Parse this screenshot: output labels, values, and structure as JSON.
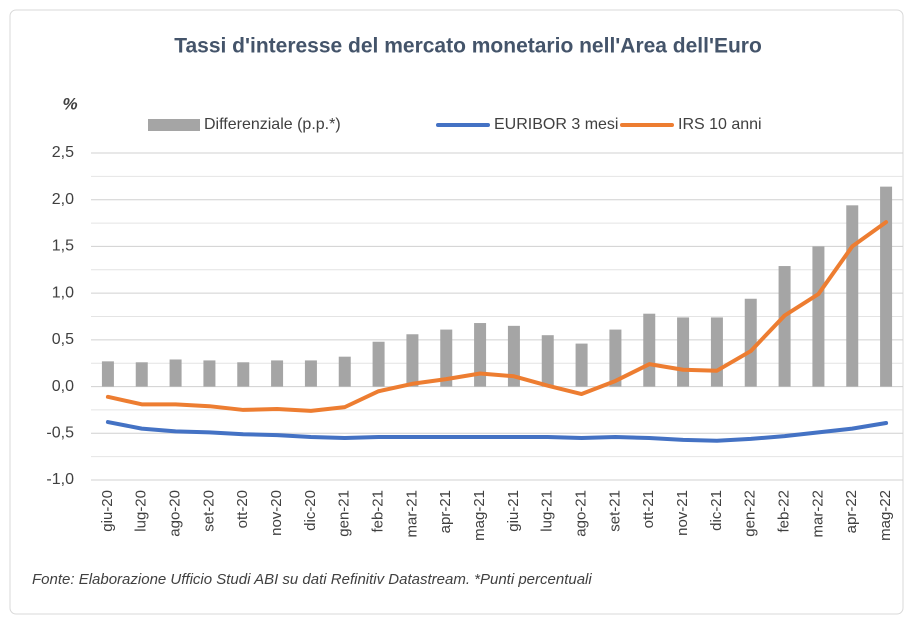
{
  "chart_data": {
    "type": "bar_line",
    "title": "Tassi d'interesse del mercato monetario nell'Area dell'Euro",
    "ylabel": "%",
    "note": "Fonte: Elaborazione Ufficio Studi ABI su dati Refinitiv Datastream. *Punti percentuali",
    "categories": [
      "giu-20",
      "lug-20",
      "ago-20",
      "set-20",
      "ott-20",
      "nov-20",
      "dic-20",
      "gen-21",
      "feb-21",
      "mar-21",
      "apr-21",
      "mag-21",
      "giu-21",
      "lug-21",
      "ago-21",
      "set-21",
      "ott-21",
      "nov-21",
      "dic-21",
      "gen-22",
      "feb-22",
      "mar-22",
      "apr-22",
      "mag-22"
    ],
    "series": [
      {
        "name": "Differenziale (p.p.*)",
        "kind": "bar",
        "color": "#a5a5a5",
        "values": [
          0.27,
          0.26,
          0.29,
          0.28,
          0.26,
          0.28,
          0.28,
          0.32,
          0.48,
          0.56,
          0.61,
          0.68,
          0.65,
          0.55,
          0.46,
          0.61,
          0.78,
          0.74,
          0.74,
          0.94,
          1.29,
          1.5,
          1.94,
          2.14
        ]
      },
      {
        "name": "EURIBOR 3 mesi",
        "kind": "line",
        "color": "#4472c4",
        "values": [
          -0.38,
          -0.45,
          -0.48,
          -0.49,
          -0.51,
          -0.52,
          -0.54,
          -0.55,
          -0.54,
          -0.54,
          -0.54,
          -0.54,
          -0.54,
          -0.54,
          -0.55,
          -0.54,
          -0.55,
          -0.57,
          -0.58,
          -0.56,
          -0.53,
          -0.49,
          -0.45,
          -0.39
        ]
      },
      {
        "name": "IRS 10 anni",
        "kind": "line",
        "color": "#ed7d31",
        "values": [
          -0.11,
          -0.19,
          -0.19,
          -0.21,
          -0.25,
          -0.24,
          -0.26,
          -0.22,
          -0.05,
          0.03,
          0.08,
          0.14,
          0.11,
          0.01,
          -0.08,
          0.06,
          0.24,
          0.18,
          0.17,
          0.38,
          0.76,
          0.99,
          1.5,
          1.76
        ]
      }
    ],
    "ylim": [
      -1.0,
      2.5
    ],
    "yticks": [
      {
        "value": -1.0,
        "label": "-1,0"
      },
      {
        "value": -0.5,
        "label": "-0,5"
      },
      {
        "value": 0.0,
        "label": "0,0"
      },
      {
        "value": 0.5,
        "label": "0,5"
      },
      {
        "value": 1.0,
        "label": "1,0"
      },
      {
        "value": 1.5,
        "label": "1,5"
      },
      {
        "value": 2.0,
        "label": "2,0"
      },
      {
        "value": 2.5,
        "label": "2,5"
      }
    ],
    "yminorticks": [
      -0.75,
      -0.25,
      0.25,
      0.75,
      1.25,
      1.75,
      2.25
    ],
    "grid": true,
    "legend": "top"
  }
}
